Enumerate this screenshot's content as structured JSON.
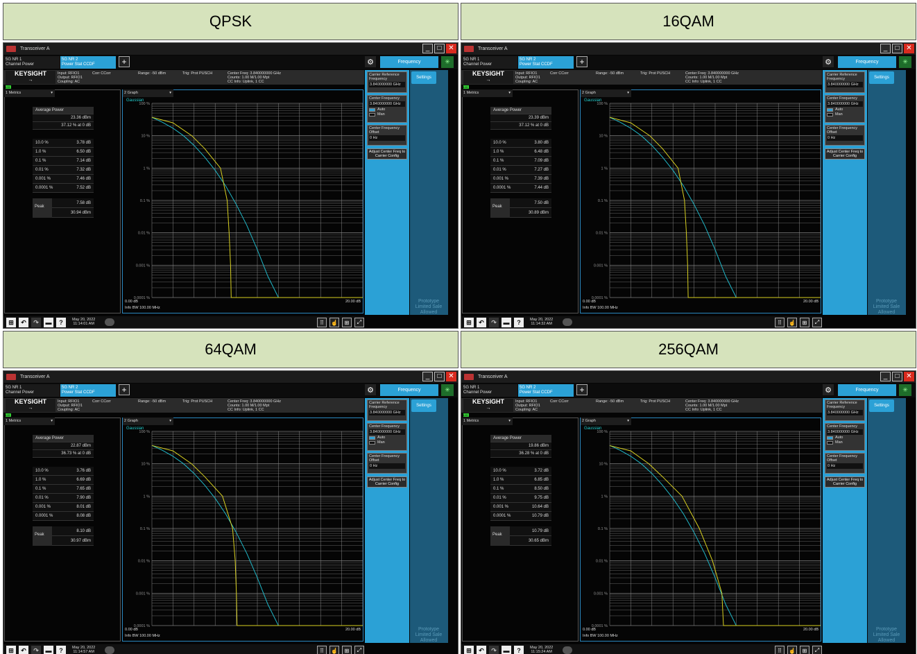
{
  "common": {
    "window_title": "Transceiver A",
    "tab1_line1": "5G NR 1",
    "tab1_line2": "Channel Power",
    "tab2_line1": "5G NR 2",
    "tab2_line2": "Power Stat CCDF",
    "add_tab": "+",
    "frequency_button": "Frequency",
    "brand": "KEYSIGHT",
    "input": "Input: RFIO1",
    "output": "Output: RFIO1",
    "coupling": "Coupling: AC",
    "corr": "Corr CCorr",
    "range": "Range: -50 dBm",
    "trig": "Trig: Prot PUSCH",
    "center_freq": "Center Freq: 3.840000000 GHz",
    "counts": "Counts: 1.00 M/1.00 Mpt",
    "cc_info": "CC Info: Uplink, 1 CC",
    "lxi": "LXI",
    "metrics_selector": "1 Metrics",
    "graph_selector": "2 Graph",
    "gaussian": "Gaussian",
    "avg_power_label": "Average Power",
    "pct_labels": [
      "10.0 %",
      "1.0 %",
      "0.1 %",
      "0.01 %",
      "0.001 %",
      "0.0001 %"
    ],
    "peak_label": "Peak",
    "y_labels": [
      "100 %",
      "10 %",
      "1 %",
      "0.1 %",
      "0.01 %",
      "0.001 %",
      "0.0001 %"
    ],
    "x_start": "0.00 dB",
    "x_end": "20.00 dB",
    "info_bw": "Info BW 100.00 MHz",
    "carrier_ref_label": "Carrier Reference Frequency",
    "carrier_ref_value": "3.840000000 GHz",
    "center_freq_label": "Center Frequency",
    "center_freq_value": "3.840000000 GHz",
    "auto": "Auto",
    "man": "Man",
    "cf_offset_label": "Center Frequency Offset",
    "cf_offset_value": "0 Hz",
    "adjust_button": "Adjust Center Freq to Carrier Config",
    "settings": "Settings",
    "prototype": "Prototype Limited Sale Allowed",
    "date": "May 20, 2022"
  },
  "panels": [
    {
      "label": "QPSK",
      "avg_power": "23.36 dBm",
      "avg_pct": "37.12 % at 0 dB",
      "pct_values": [
        "3.78 dB",
        "6.50 dB",
        "7.14 dB",
        "7.32 dB",
        "7.46 dB",
        "7.52 dB"
      ],
      "peak_db": "7.58 dB",
      "peak_dbm": "30.94 dBm",
      "time": "11:14:01 AM",
      "measured_curve": [
        [
          0,
          37.12
        ],
        [
          2,
          25
        ],
        [
          3.78,
          10
        ],
        [
          5,
          4
        ],
        [
          6.5,
          1
        ],
        [
          7.14,
          0.1
        ],
        [
          7.32,
          0.01
        ],
        [
          7.46,
          0.001
        ],
        [
          7.52,
          0.0001
        ]
      ]
    },
    {
      "label": "16QAM",
      "avg_power": "23.39 dBm",
      "avg_pct": "37.12 % at 0 dB",
      "pct_values": [
        "3.80 dB",
        "6.48 dB",
        "7.09 dB",
        "7.27 dB",
        "7.39 dB",
        "7.44 dB"
      ],
      "peak_db": "7.50 dB",
      "peak_dbm": "30.89 dBm",
      "time": "11:14:32 AM",
      "measured_curve": [
        [
          0,
          37.12
        ],
        [
          2,
          25
        ],
        [
          3.8,
          10
        ],
        [
          5,
          4
        ],
        [
          6.48,
          1
        ],
        [
          7.09,
          0.1
        ],
        [
          7.27,
          0.01
        ],
        [
          7.39,
          0.001
        ],
        [
          7.44,
          0.0001
        ]
      ]
    },
    {
      "label": "64QAM",
      "avg_power": "22.87 dBm",
      "avg_pct": "36.73 % at 0 dB",
      "pct_values": [
        "3.76 dB",
        "6.69 dB",
        "7.65 dB",
        "7.90 dB",
        "8.01 dB",
        "8.08 dB"
      ],
      "peak_db": "8.10 dB",
      "peak_dbm": "30.97 dBm",
      "time": "11:14:57 AM",
      "measured_curve": [
        [
          0,
          36.73
        ],
        [
          2,
          25
        ],
        [
          3.76,
          10
        ],
        [
          5,
          4
        ],
        [
          6.69,
          1
        ],
        [
          7.65,
          0.1
        ],
        [
          7.9,
          0.01
        ],
        [
          8.01,
          0.001
        ],
        [
          8.08,
          0.0001
        ]
      ]
    },
    {
      "label": "256QAM",
      "avg_power": "19.86 dBm",
      "avg_pct": "36.28 % at 0 dB",
      "pct_values": [
        "3.72 dB",
        "6.85 dB",
        "8.50 dB",
        "9.75 dB",
        "10.64 dB",
        "10.79 dB"
      ],
      "peak_db": "10.79 dB",
      "peak_dbm": "30.65 dBm",
      "time": "11:15:24 AM",
      "measured_curve": [
        [
          0,
          36.28
        ],
        [
          2,
          25
        ],
        [
          3.72,
          10
        ],
        [
          5,
          4
        ],
        [
          6.85,
          1
        ],
        [
          8.5,
          0.1
        ],
        [
          9.75,
          0.01
        ],
        [
          10.64,
          0.001
        ],
        [
          10.79,
          0.0001
        ]
      ]
    }
  ],
  "gaussian_curve": [
    [
      0,
      36.8
    ],
    [
      1,
      26
    ],
    [
      2,
      17
    ],
    [
      3,
      10
    ],
    [
      4,
      5
    ],
    [
      5,
      2.2
    ],
    [
      6,
      0.85
    ],
    [
      7,
      0.28
    ],
    [
      8,
      0.075
    ],
    [
      9,
      0.017
    ],
    [
      10,
      0.003
    ],
    [
      11,
      0.00045
    ],
    [
      12,
      0.0001
    ]
  ],
  "colors": {
    "measured": "#d8d020",
    "gaussian": "#20b8c8",
    "accent": "#2ba1d6",
    "header_bg": "#d6e3bc"
  }
}
